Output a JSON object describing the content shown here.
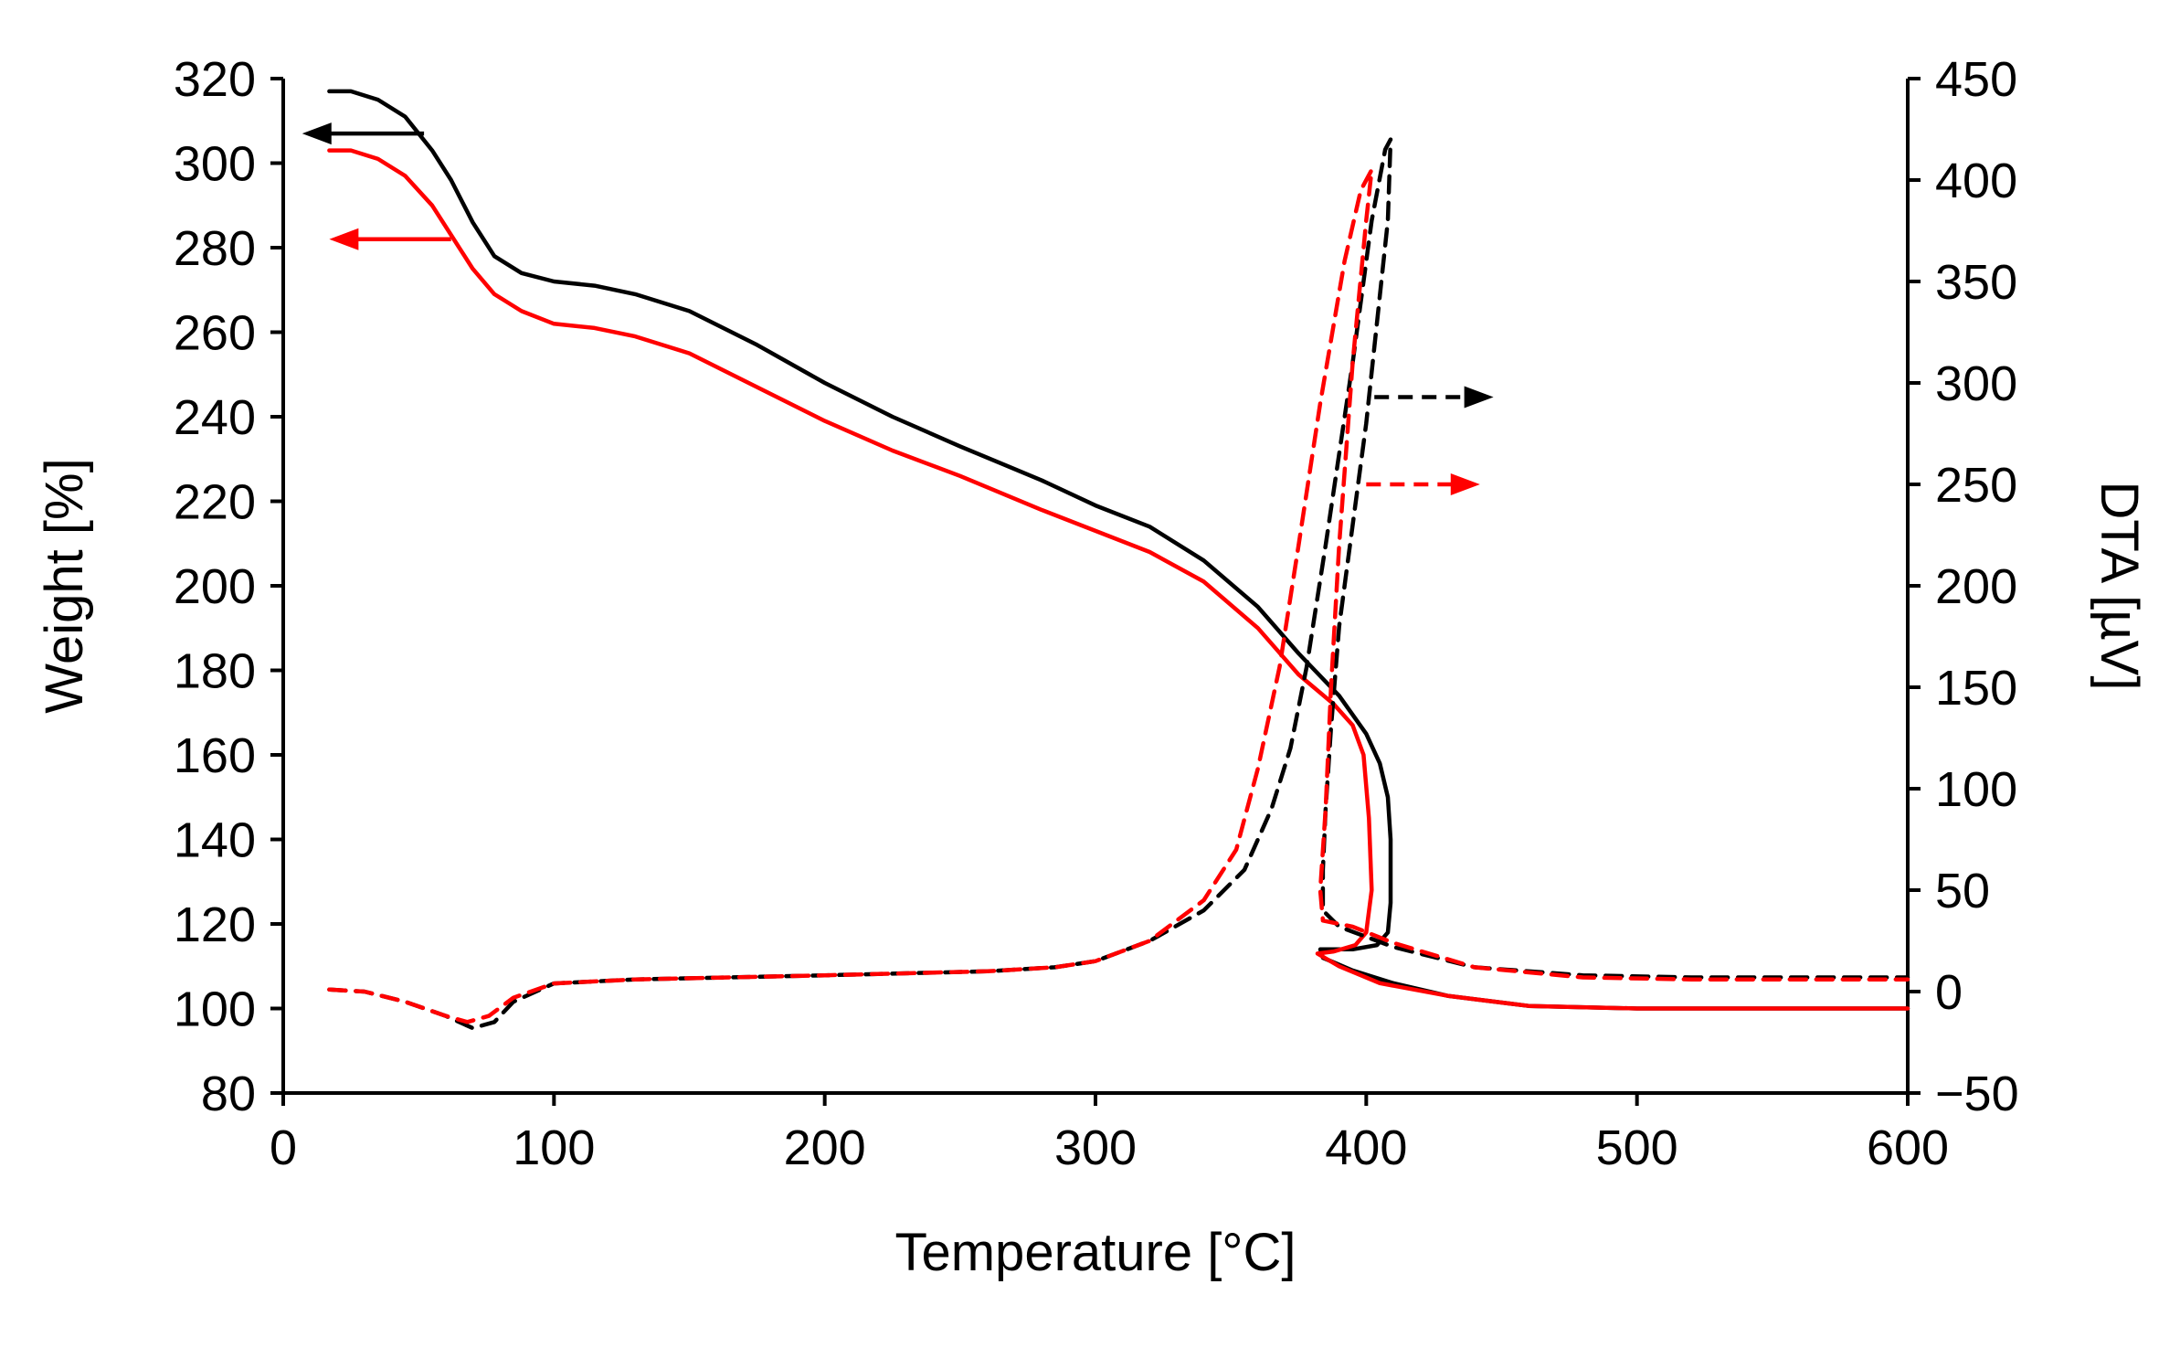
{
  "chart_data": {
    "type": "line",
    "title": "",
    "xlabel": "Temperature [°C]",
    "ylabel": "Weight [%]",
    "y2label": "DTA [µV]",
    "xlim": [
      0,
      600
    ],
    "ylim": [
      80,
      320
    ],
    "y2lim": [
      -50,
      450
    ],
    "x_ticks": [
      "0",
      "100",
      "200",
      "300",
      "400",
      "500",
      "600"
    ],
    "y_ticks": [
      "80",
      "100",
      "120",
      "140",
      "160",
      "180",
      "200",
      "220",
      "240",
      "260",
      "280",
      "300",
      "320"
    ],
    "y2_ticks": [
      "−50",
      "0",
      "50",
      "100",
      "150",
      "200",
      "250",
      "300",
      "350",
      "400",
      "450"
    ],
    "grid": false,
    "colors": {
      "black": "#000000",
      "red": "#ff0000"
    },
    "series": [
      {
        "name": "Weight (black)",
        "axis": "left",
        "style": "solid",
        "color": "#000000",
        "points": [
          [
            17,
            317
          ],
          [
            25,
            317
          ],
          [
            35,
            315
          ],
          [
            45,
            311
          ],
          [
            55,
            303
          ],
          [
            62,
            296
          ],
          [
            70,
            286
          ],
          [
            78,
            278
          ],
          [
            88,
            274
          ],
          [
            100,
            272
          ],
          [
            115,
            271
          ],
          [
            130,
            269
          ],
          [
            150,
            265
          ],
          [
            175,
            257
          ],
          [
            200,
            248
          ],
          [
            225,
            240
          ],
          [
            250,
            233
          ],
          [
            280,
            225
          ],
          [
            300,
            219
          ],
          [
            320,
            214
          ],
          [
            340,
            206
          ],
          [
            360,
            195
          ],
          [
            375,
            184
          ],
          [
            390,
            174
          ],
          [
            400,
            165
          ],
          [
            405,
            158
          ],
          [
            408,
            150
          ],
          [
            409,
            140
          ],
          [
            409,
            125
          ],
          [
            408,
            118
          ],
          [
            404,
            115
          ],
          [
            395,
            114
          ],
          [
            383,
            114
          ],
          [
            384,
            112
          ],
          [
            395,
            109
          ],
          [
            410,
            106
          ],
          [
            430,
            103
          ],
          [
            460,
            100.6
          ],
          [
            500,
            100
          ],
          [
            600,
            100
          ]
        ]
      },
      {
        "name": "Weight (red)",
        "axis": "left",
        "style": "solid",
        "color": "#ff0000",
        "points": [
          [
            17,
            303
          ],
          [
            25,
            303
          ],
          [
            35,
            301
          ],
          [
            45,
            297
          ],
          [
            55,
            290
          ],
          [
            62,
            283
          ],
          [
            70,
            275
          ],
          [
            78,
            269
          ],
          [
            88,
            265
          ],
          [
            100,
            262
          ],
          [
            115,
            261
          ],
          [
            130,
            259
          ],
          [
            150,
            255
          ],
          [
            175,
            247
          ],
          [
            200,
            239
          ],
          [
            225,
            232
          ],
          [
            250,
            226
          ],
          [
            280,
            218
          ],
          [
            300,
            213
          ],
          [
            320,
            208
          ],
          [
            340,
            201
          ],
          [
            360,
            190
          ],
          [
            375,
            179
          ],
          [
            388,
            172
          ],
          [
            395,
            167
          ],
          [
            399,
            160
          ],
          [
            401,
            145
          ],
          [
            402,
            128
          ],
          [
            400,
            118
          ],
          [
            396,
            115
          ],
          [
            388,
            113.5
          ],
          [
            382,
            113
          ],
          [
            390,
            110
          ],
          [
            405,
            106
          ],
          [
            430,
            103
          ],
          [
            460,
            100.6
          ],
          [
            500,
            100
          ],
          [
            600,
            100
          ]
        ]
      },
      {
        "name": "DTA (black)",
        "axis": "right",
        "style": "dashed",
        "color": "#000000",
        "points": [
          [
            17,
            1
          ],
          [
            30,
            0
          ],
          [
            45,
            -5
          ],
          [
            60,
            -12
          ],
          [
            70,
            -18
          ],
          [
            78,
            -15
          ],
          [
            85,
            -5
          ],
          [
            100,
            4
          ],
          [
            130,
            6
          ],
          [
            200,
            8
          ],
          [
            260,
            10
          ],
          [
            285,
            12
          ],
          [
            300,
            15
          ],
          [
            320,
            25
          ],
          [
            340,
            40
          ],
          [
            355,
            60
          ],
          [
            365,
            90
          ],
          [
            372,
            120
          ],
          [
            378,
            160
          ],
          [
            385,
            220
          ],
          [
            395,
            310
          ],
          [
            402,
            380
          ],
          [
            407,
            415
          ],
          [
            409,
            420
          ],
          [
            408,
            380
          ],
          [
            400,
            280
          ],
          [
            395,
            230
          ],
          [
            390,
            180
          ],
          [
            387,
            130
          ],
          [
            385,
            90
          ],
          [
            384,
            60
          ],
          [
            384,
            40
          ],
          [
            390,
            32
          ],
          [
            410,
            22
          ],
          [
            440,
            12
          ],
          [
            480,
            8
          ],
          [
            520,
            7
          ],
          [
            600,
            7
          ]
        ]
      },
      {
        "name": "DTA (red)",
        "axis": "right",
        "style": "dashed",
        "color": "#ff0000",
        "points": [
          [
            17,
            1
          ],
          [
            30,
            0
          ],
          [
            45,
            -5
          ],
          [
            60,
            -12
          ],
          [
            68,
            -15
          ],
          [
            76,
            -12
          ],
          [
            85,
            -3
          ],
          [
            100,
            4
          ],
          [
            130,
            6
          ],
          [
            200,
            8
          ],
          [
            260,
            10
          ],
          [
            285,
            12
          ],
          [
            300,
            15
          ],
          [
            320,
            25
          ],
          [
            340,
            45
          ],
          [
            352,
            70
          ],
          [
            360,
            110
          ],
          [
            368,
            160
          ],
          [
            375,
            220
          ],
          [
            383,
            290
          ],
          [
            392,
            360
          ],
          [
            398,
            395
          ],
          [
            402,
            405
          ],
          [
            400,
            380
          ],
          [
            395,
            310
          ],
          [
            390,
            220
          ],
          [
            387,
            150
          ],
          [
            385,
            90
          ],
          [
            383,
            50
          ],
          [
            384,
            35
          ],
          [
            395,
            32
          ],
          [
            410,
            24
          ],
          [
            440,
            12
          ],
          [
            480,
            7
          ],
          [
            520,
            6
          ],
          [
            600,
            6
          ]
        ]
      }
    ],
    "annotations": [
      {
        "type": "arrow",
        "direction": "left",
        "color": "#000000",
        "style": "solid",
        "axis": "left",
        "x_from": 52,
        "x_to": 7,
        "y": 307,
        "meaning": "black weight curve uses left axis"
      },
      {
        "type": "arrow",
        "direction": "left",
        "color": "#ff0000",
        "style": "solid",
        "axis": "left",
        "x_from": 62,
        "x_to": 17,
        "y": 282,
        "meaning": "red weight curve uses left axis"
      },
      {
        "type": "arrow",
        "direction": "right",
        "color": "#000000",
        "style": "dashed",
        "axis": "right",
        "x_from": 403,
        "x_to": 447,
        "y": 293,
        "meaning": "black DTA curve uses right axis"
      },
      {
        "type": "arrow",
        "direction": "right",
        "color": "#ff0000",
        "style": "dashed",
        "axis": "right",
        "x_from": 400,
        "x_to": 442,
        "y": 250,
        "meaning": "red DTA curve uses right axis"
      }
    ]
  }
}
